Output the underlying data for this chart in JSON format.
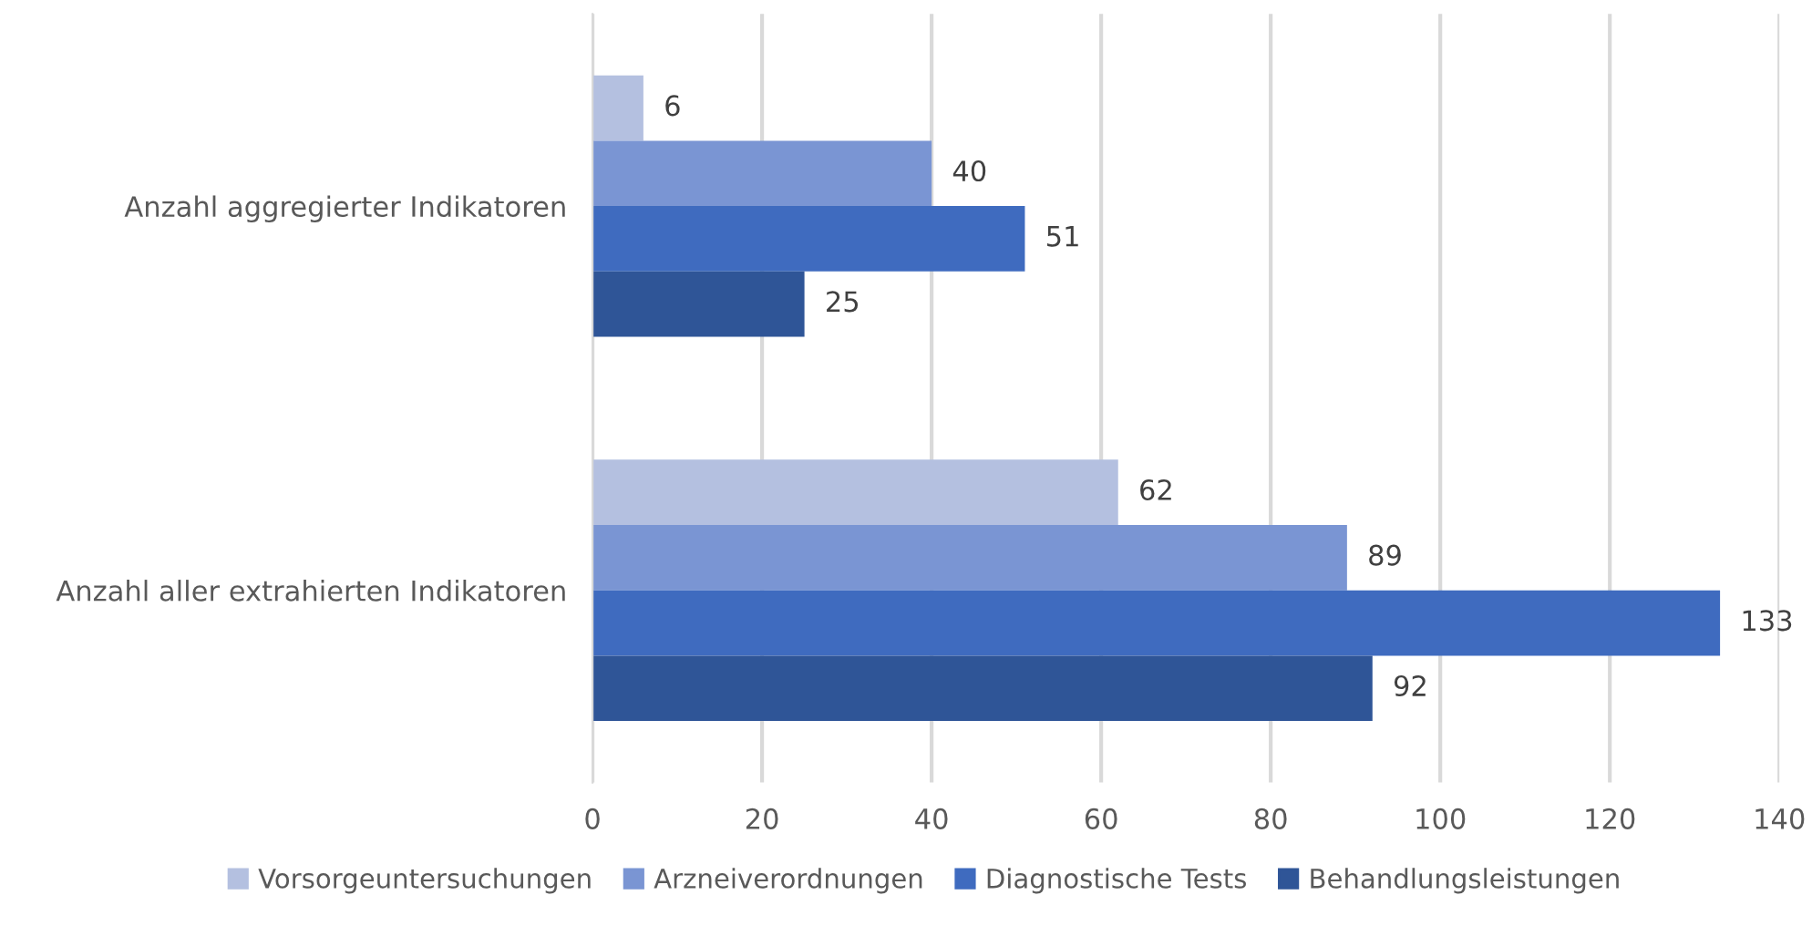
{
  "chart_data": {
    "type": "bar",
    "orientation": "horizontal",
    "categories": [
      "Anzahl aggregierter Indikatoren",
      "Anzahl aller extrahierten Indikatoren"
    ],
    "series": [
      {
        "name": "Vorsorgeuntersuchungen",
        "color": "#b4c0e0",
        "values": [
          6,
          62
        ]
      },
      {
        "name": "Arzneiverordnungen",
        "color": "#7a95d3",
        "values": [
          40,
          89
        ]
      },
      {
        "name": "Diagnostische Tests",
        "color": "#3f6bbf",
        "values": [
          51,
          133
        ]
      },
      {
        "name": "Behandlungsleistungen",
        "color": "#2f5597",
        "values": [
          25,
          92
        ]
      }
    ],
    "xlim": [
      0,
      140
    ],
    "xticks": [
      0,
      20,
      40,
      60,
      80,
      100,
      120,
      140
    ],
    "grid": "x",
    "legend": "bottom",
    "data_labels": true
  }
}
